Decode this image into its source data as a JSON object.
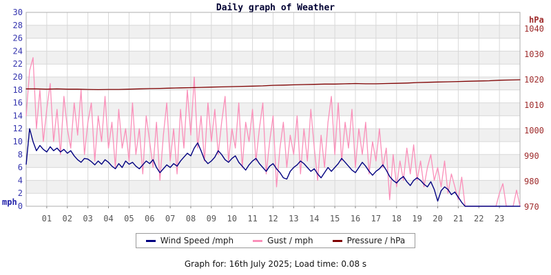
{
  "title": "Daily graph of Weather",
  "footer": "Graph for: 16th July 2025; Load time: 0.08 s",
  "legend": [
    {
      "label": "Wind Speed /mph",
      "color": "#000080"
    },
    {
      "label": "Gust / mph",
      "color": "#fa8fb9"
    },
    {
      "label": "Pressure / hPa",
      "color": "#7f0000"
    }
  ],
  "colors": {
    "band_gray": "#f0f0f0",
    "gridline": "#d8d8d8",
    "plot_border": "#aeaeae",
    "left_axis_text": "#3434ae",
    "right_axis_text": "#9e2b2b",
    "x_axis_text": "#565656"
  },
  "chart_data": {
    "type": "line",
    "title": "Daily graph of Weather",
    "x_unit": "hour of day",
    "x_range": [
      0,
      24
    ],
    "x_tick_labels": [
      "01",
      "02",
      "03",
      "04",
      "05",
      "06",
      "07",
      "08",
      "09",
      "10",
      "11",
      "12",
      "13",
      "14",
      "15",
      "16",
      "17",
      "18",
      "19",
      "20",
      "21",
      "22",
      "23"
    ],
    "grid": true,
    "legend_position": "bottom",
    "left_axis": {
      "label": "mph",
      "range": [
        0,
        30
      ],
      "ticks": [
        0,
        2,
        4,
        6,
        8,
        10,
        12,
        14,
        16,
        18,
        20,
        22,
        24,
        26,
        28,
        30
      ]
    },
    "right_axis": {
      "label": "hPa",
      "range": [
        970,
        1040
      ],
      "ticks": [
        970,
        980,
        990,
        1000,
        1010,
        1020,
        1030,
        1040
      ]
    },
    "series": [
      {
        "name": "Gust / mph",
        "axis": "left",
        "color": "#fa8fb9",
        "width": 1.3,
        "interval_minutes": 10,
        "values": [
          14,
          21,
          23,
          12,
          18,
          10,
          15,
          19,
          10,
          15,
          8,
          17,
          12,
          9,
          16,
          11,
          18,
          8,
          13,
          16,
          7,
          14,
          10,
          17,
          9,
          13,
          6,
          15,
          9,
          12,
          7,
          16,
          8,
          12,
          5,
          14,
          10,
          6,
          13,
          4,
          11,
          16,
          7,
          12,
          5,
          15,
          9,
          18,
          11,
          20,
          9,
          14,
          7,
          16,
          10,
          15,
          8,
          13,
          17,
          7,
          12,
          9,
          16,
          6,
          13,
          10,
          15,
          7,
          12,
          16,
          5,
          10,
          14,
          3,
          9,
          13,
          6,
          11,
          8,
          14,
          5,
          12,
          7,
          15,
          9,
          4,
          11,
          6,
          13,
          17,
          8,
          16,
          7,
          13,
          9,
          15,
          6,
          12,
          8,
          13,
          5,
          10,
          7,
          12,
          6,
          9,
          1,
          8,
          3,
          7,
          4,
          9,
          5,
          9.5,
          4,
          7,
          3,
          6,
          8,
          4,
          6,
          3,
          7,
          2,
          5,
          3,
          1,
          4.5,
          0,
          0,
          0,
          0,
          0,
          0,
          0,
          0,
          0,
          0,
          2,
          3.5,
          0,
          0,
          0,
          2.5,
          0
        ]
      },
      {
        "name": "Wind Speed /mph",
        "axis": "left",
        "color": "#000080",
        "width": 1.4,
        "interval_minutes": 10,
        "values": [
          6.5,
          12,
          10,
          8.6,
          9.4,
          8.8,
          8.4,
          9.2,
          8.6,
          9,
          8.4,
          8.8,
          8.2,
          8.6,
          7.8,
          7.2,
          6.8,
          7.4,
          7.3,
          6.9,
          6.4,
          7,
          6.5,
          7.2,
          6.8,
          6.2,
          5.8,
          6.6,
          6,
          7,
          6.5,
          6.8,
          6.2,
          5.8,
          6.4,
          7,
          6.6,
          7.2,
          6,
          5.2,
          5.8,
          6.4,
          6,
          6.6,
          6.2,
          7,
          7.6,
          8.2,
          7.8,
          9,
          9.8,
          8.6,
          7.2,
          6.6,
          7,
          7.6,
          8.6,
          8,
          7.2,
          6.8,
          7.4,
          7.8,
          6.8,
          6.2,
          5.6,
          6.4,
          7,
          7.4,
          6.6,
          6,
          5.4,
          6.2,
          6.6,
          5.8,
          5.2,
          4.4,
          4.2,
          5.4,
          6,
          6.4,
          7,
          6.6,
          6,
          5.4,
          5.8,
          5,
          4.4,
          5.2,
          6,
          5.4,
          6,
          6.6,
          7.4,
          6.8,
          6.2,
          5.6,
          5.2,
          6,
          6.8,
          6.2,
          5.4,
          4.8,
          5.4,
          5.8,
          6.4,
          5.6,
          4.6,
          4,
          3.6,
          4.2,
          4.6,
          3.8,
          3.2,
          4,
          4.4,
          4,
          3.4,
          3,
          3.8,
          2.6,
          0.8,
          2.4,
          3,
          2.6,
          1.8,
          2.2,
          1.4,
          0.6,
          0,
          0,
          0,
          0,
          0,
          0,
          0,
          0,
          0,
          0,
          0,
          0,
          0,
          0,
          0,
          0,
          0
        ]
      },
      {
        "name": "Pressure / hPa",
        "axis": "right",
        "color": "#7f0000",
        "width": 1.3,
        "interval_minutes": 30,
        "values": [
          1016.4,
          1016.4,
          1016.3,
          1016.4,
          1016.3,
          1016.3,
          1016.2,
          1016.1,
          1016.2,
          1016.2,
          1016.3,
          1016.4,
          1016.5,
          1016.6,
          1016.7,
          1016.8,
          1016.9,
          1017.0,
          1017.1,
          1017.2,
          1017.3,
          1017.4,
          1017.5,
          1017.6,
          1017.8,
          1017.9,
          1018.0,
          1018.1,
          1018.2,
          1018.3,
          1018.3,
          1018.4,
          1018.5,
          1018.4,
          1018.4,
          1018.5,
          1018.6,
          1018.7,
          1018.9,
          1019.0,
          1019.1,
          1019.2,
          1019.3,
          1019.4,
          1019.5,
          1019.6,
          1019.8,
          1019.9,
          1020.0
        ]
      }
    ]
  }
}
